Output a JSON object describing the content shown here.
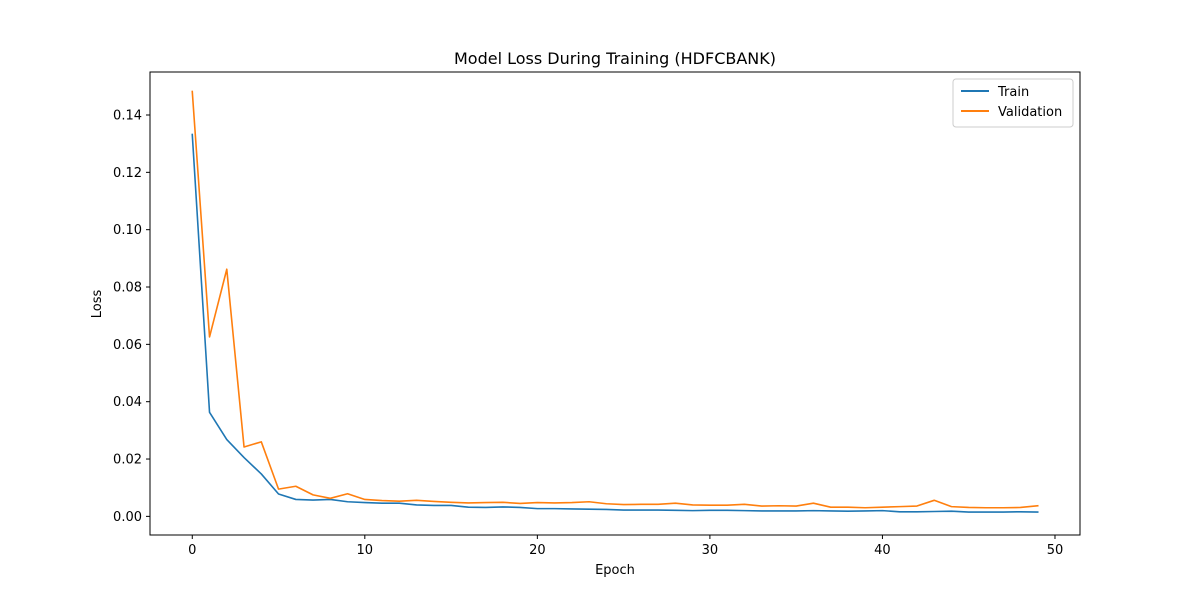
{
  "chart_data": {
    "type": "line",
    "title": "Model Loss During Training (HDFCBANK)",
    "xlabel": "Epoch",
    "ylabel": "Loss",
    "xlim": [
      -2.45,
      51.45
    ],
    "ylim": [
      -0.0065,
      0.155
    ],
    "xticks": [
      0,
      10,
      20,
      30,
      40,
      50
    ],
    "yticks": [
      0.0,
      0.02,
      0.04,
      0.06,
      0.08,
      0.1,
      0.12,
      0.14
    ],
    "ytick_labels": [
      "0.00",
      "0.02",
      "0.04",
      "0.06",
      "0.08",
      "0.10",
      "0.12",
      "0.14"
    ],
    "grid": false,
    "legend_position": "upper-right",
    "series": [
      {
        "name": "Train",
        "color": "#1f77b4",
        "x": [
          0,
          1,
          2,
          3,
          4,
          5,
          6,
          7,
          8,
          9,
          10,
          11,
          12,
          13,
          14,
          15,
          16,
          17,
          18,
          19,
          20,
          21,
          22,
          23,
          24,
          25,
          26,
          27,
          28,
          29,
          30,
          31,
          32,
          33,
          34,
          35,
          36,
          37,
          38,
          39,
          40,
          41,
          42,
          43,
          44,
          45,
          46,
          47,
          48,
          49
        ],
        "values": [
          0.1332,
          0.0363,
          0.0268,
          0.0205,
          0.0148,
          0.0078,
          0.0059,
          0.0057,
          0.0059,
          0.0051,
          0.0048,
          0.0046,
          0.0046,
          0.004,
          0.0038,
          0.0038,
          0.0032,
          0.0031,
          0.0033,
          0.0031,
          0.0027,
          0.0027,
          0.0026,
          0.0025,
          0.0024,
          0.0022,
          0.0022,
          0.0022,
          0.0021,
          0.002,
          0.0021,
          0.0021,
          0.002,
          0.0019,
          0.0019,
          0.0019,
          0.002,
          0.0019,
          0.0018,
          0.0019,
          0.002,
          0.0016,
          0.0016,
          0.0017,
          0.0018,
          0.0015,
          0.0015,
          0.0015,
          0.0016,
          0.0015
        ]
      },
      {
        "name": "Validation",
        "color": "#ff7f0e",
        "x": [
          0,
          1,
          2,
          3,
          4,
          5,
          6,
          7,
          8,
          9,
          10,
          11,
          12,
          13,
          14,
          15,
          16,
          17,
          18,
          19,
          20,
          21,
          22,
          23,
          24,
          25,
          26,
          27,
          28,
          29,
          30,
          31,
          32,
          33,
          34,
          35,
          36,
          37,
          38,
          39,
          40,
          41,
          42,
          43,
          44,
          45,
          46,
          47,
          48,
          49
        ],
        "values": [
          0.1482,
          0.0626,
          0.0862,
          0.0242,
          0.026,
          0.0095,
          0.0105,
          0.0075,
          0.0063,
          0.0079,
          0.0059,
          0.0055,
          0.0053,
          0.0056,
          0.0052,
          0.0049,
          0.0047,
          0.0048,
          0.0049,
          0.0045,
          0.0048,
          0.0047,
          0.0048,
          0.0051,
          0.0044,
          0.0041,
          0.0042,
          0.0042,
          0.0046,
          0.004,
          0.0039,
          0.0039,
          0.0042,
          0.0036,
          0.0037,
          0.0036,
          0.0046,
          0.0032,
          0.0032,
          0.003,
          0.0032,
          0.0034,
          0.0036,
          0.0056,
          0.0034,
          0.0031,
          0.003,
          0.003,
          0.0031,
          0.0037
        ]
      }
    ]
  }
}
